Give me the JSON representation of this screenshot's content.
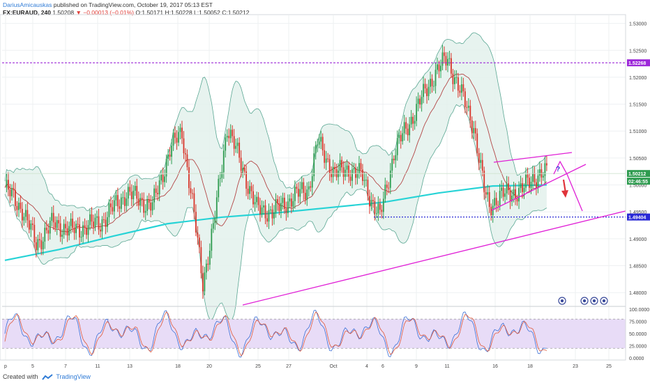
{
  "header": {
    "author": "DariusAmicauskas",
    "published": "published on TradingView.com, October 19, 2017 05:13 EST",
    "symbol": "FX:EURAUD, 240",
    "last": "1.50208",
    "change": "▼ −0.00013 (−0.01%)",
    "ohlc": "O:1.50171 H:1.50228 L:1.50052 C:1.50212"
  },
  "footer": {
    "created_with": "Created with",
    "brand": "TradingView"
  },
  "colors": {
    "candle_up": "#2e9b4f",
    "candle_down": "#d8352a",
    "band_line": "#5aa793",
    "band_fill": "#e3f1ec",
    "basis": "#b34646",
    "ma200": "#27d3d6",
    "resistance": "#9c27d9",
    "support": "#2a2ad6",
    "pattern": "#e01fd6",
    "forecast": "#e0333a",
    "osc_fill": "#e8dcf7"
  },
  "icons": [
    "moon-icon",
    "gear-icon",
    "gear-icon",
    "moon-icon"
  ],
  "chart_data": [
    {
      "type": "candlestick",
      "title": "",
      "symbol": "FX:EURAUD",
      "interval": "240",
      "y_axis": {
        "ticks": [
          "1.53000",
          "1.52500",
          "1.52000",
          "1.51500",
          "1.51000",
          "1.50500",
          "1.50000",
          "1.49500",
          "1.49000",
          "1.48500",
          "1.48000"
        ],
        "range": [
          1.4777,
          1.5315
        ]
      },
      "x_axis": {
        "ticks": [
          "p",
          "5",
          "7",
          "11",
          "13",
          "18",
          "20",
          "25",
          "27",
          "Oct",
          "4",
          "6",
          "9",
          "11",
          "16",
          "18",
          "23",
          "25"
        ]
      },
      "markers": [
        {
          "label": "1.52268",
          "value": 1.52268,
          "color": "#9c27d9",
          "style": "dashed"
        },
        {
          "label": "1.50212",
          "value": 1.50212,
          "color": "#2e9b4f",
          "style": "price"
        },
        {
          "label": "02:46:55",
          "color": "#2e9b4f",
          "style": "countdown"
        },
        {
          "label": "1.49404",
          "value": 1.49404,
          "color": "#2a2ad6",
          "style": "dashed"
        }
      ],
      "annotations": [
        "?"
      ],
      "grid": true
    },
    {
      "type": "line",
      "title": "",
      "indicator": "stochastic",
      "y_axis": {
        "ticks": [
          "100.0000",
          "75.0000",
          "50.0000",
          "25.0000",
          "0.0000"
        ],
        "range": [
          -4,
          106
        ]
      },
      "bands": [
        20,
        80
      ],
      "grid": true
    }
  ]
}
